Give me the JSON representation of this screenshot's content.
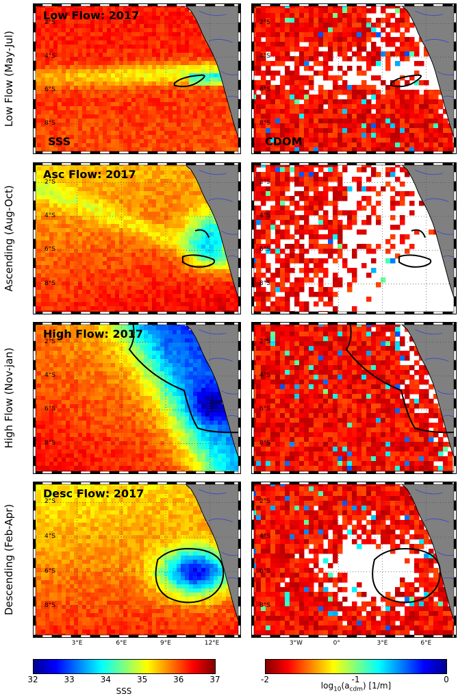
{
  "rows": [
    {
      "label": "Low Flow (May-Jul)",
      "title": "Low Flow: 2017"
    },
    {
      "label": "Ascending (Aug-Oct)",
      "title": "Asc Flow: 2017"
    },
    {
      "label": "High Flow (Nov-jan)",
      "title": "High Flow: 2017"
    },
    {
      "label": "Descending (Feb-Apr)",
      "title": "Desc Flow: 2017"
    }
  ],
  "panel_tags": {
    "sss": "SSS",
    "cdom": "CDOM"
  },
  "lat_ticks": [
    "2°S",
    "4°S",
    "6°S",
    "8°S"
  ],
  "sss_lon_ticks": [
    "3°E",
    "6°E",
    "9°E",
    "12°E"
  ],
  "cdom_lon_ticks": [
    "3°W",
    "0°",
    "3°E",
    "6°E"
  ],
  "sss_colorbar": {
    "min": 32,
    "max": 37,
    "ticks": [
      "32",
      "33",
      "34",
      "35",
      "36",
      "37"
    ],
    "label": "SSS",
    "colormap": "jet"
  },
  "cdom_colorbar": {
    "min": -2,
    "max": 0,
    "ticks": [
      "-2",
      "-1",
      "0"
    ],
    "label_main": "log",
    "label_sub1": "10",
    "label_mid": "(a",
    "label_sub2": "cdm",
    "label_end": ") [1/m]",
    "colormap": "jet-reversed"
  },
  "colors": {
    "land": "#808080",
    "coast_river": "#3344cc",
    "plume_contour": "#000000",
    "no_data": "#ffffff"
  }
}
